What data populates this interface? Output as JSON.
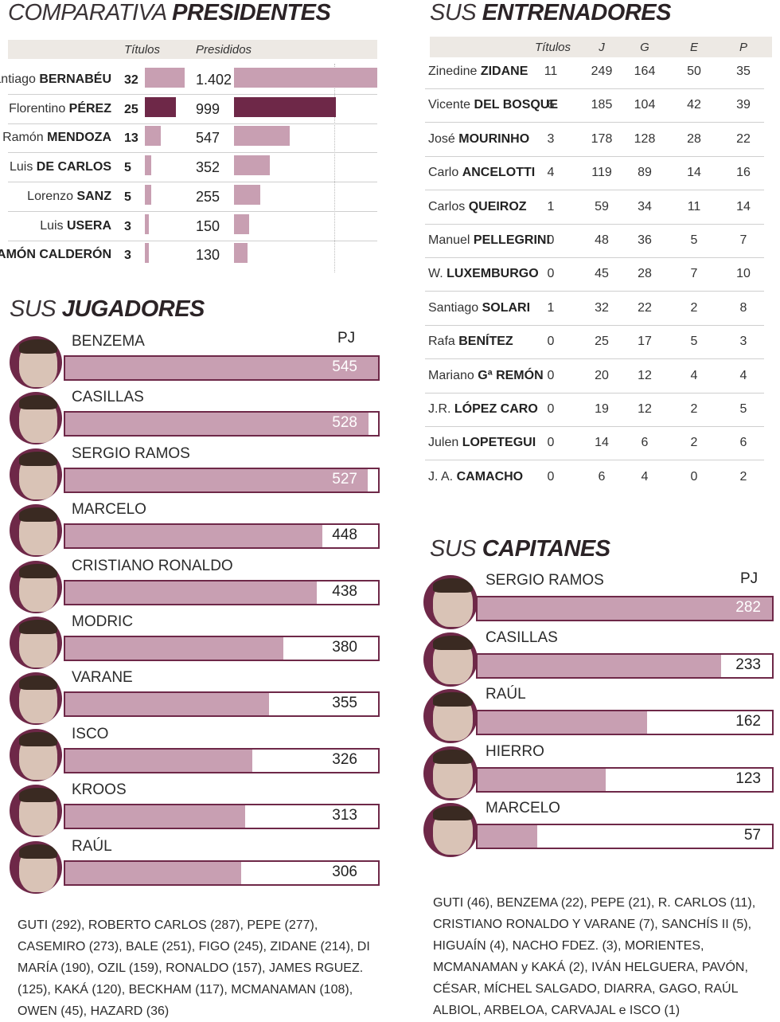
{
  "colors": {
    "accent": "#6e2848",
    "light": "#c89fb2",
    "header_bg": "#ede9e4"
  },
  "presidents": {
    "title_light": "COMPARATIVA ",
    "title_bold": "PRESIDENTES",
    "col_titulos": "Títulos",
    "col_presididos": "Presididos",
    "max_presididos": 1402,
    "rows": [
      {
        "first": "Santiago ",
        "last": "BERNABÉU",
        "titulos": 32,
        "presididos": 1402,
        "presididos_label": "1.402",
        "highlight": false
      },
      {
        "first": "Florentino ",
        "last": "PÉREZ",
        "titulos": 25,
        "presididos": 999,
        "presididos_label": "999",
        "highlight": true
      },
      {
        "first": "Ramón ",
        "last": "MENDOZA",
        "titulos": 13,
        "presididos": 547,
        "presididos_label": "547",
        "highlight": false
      },
      {
        "first": "Luis ",
        "last": "DE CARLOS",
        "titulos": 5,
        "presididos": 352,
        "presididos_label": "352",
        "highlight": false
      },
      {
        "first": "Lorenzo ",
        "last": "SANZ",
        "titulos": 5,
        "presididos": 255,
        "presididos_label": "255",
        "highlight": false
      },
      {
        "first": "Luis ",
        "last": "USERA",
        "titulos": 3,
        "presididos": 150,
        "presididos_label": "150",
        "highlight": false
      },
      {
        "first": "",
        "last": "RAMÓN CALDERÓN",
        "titulos": 3,
        "presididos": 130,
        "presididos_label": "130",
        "highlight": false
      }
    ]
  },
  "jugadores": {
    "title_light": "SUS ",
    "title_bold": "JUGADORES",
    "col_label": "PJ",
    "max": 545,
    "rows": [
      {
        "name": "BENZEMA",
        "pj": 545
      },
      {
        "name": "CASILLAS",
        "pj": 528
      },
      {
        "name": "SERGIO RAMOS",
        "pj": 527
      },
      {
        "name": "MARCELO",
        "pj": 448
      },
      {
        "name": "CRISTIANO RONALDO",
        "pj": 438
      },
      {
        "name": "MODRIC",
        "pj": 380
      },
      {
        "name": "VARANE",
        "pj": 355
      },
      {
        "name": "ISCO",
        "pj": 326
      },
      {
        "name": "KROOS",
        "pj": 313
      },
      {
        "name": "RAÚL",
        "pj": 306
      }
    ],
    "footnote": "GUTI (292), ROBERTO CARLOS (287), PEPE (277), CASEMIRO (273), BALE (251), FIGO (245), ZIDANE (214), DI MARÍA (190), OZIL (159), RONALDO (157), JAMES RGUEZ. (125), KAKÁ (120), BECKHAM (117), MCMANAMAN (108), OWEN (45), HAZARD (36)"
  },
  "entrenadores": {
    "title_light": "SUS ",
    "title_bold": "ENTRENADORES",
    "columns": [
      "Títulos",
      "J",
      "G",
      "E",
      "P"
    ],
    "rows": [
      {
        "first": "Zinedine ",
        "last": "ZIDANE",
        "values": [
          11,
          249,
          164,
          50,
          35
        ]
      },
      {
        "first": "Vicente ",
        "last": "DEL BOSQUE",
        "values": [
          6,
          185,
          104,
          42,
          39
        ]
      },
      {
        "first": "José ",
        "last": "MOURINHO",
        "values": [
          3,
          178,
          128,
          28,
          22
        ]
      },
      {
        "first": "Carlo ",
        "last": "ANCELOTTI",
        "values": [
          4,
          119,
          89,
          14,
          16
        ]
      },
      {
        "first": "Carlos ",
        "last": "QUEIROZ",
        "values": [
          1,
          59,
          34,
          11,
          14
        ]
      },
      {
        "first": "Manuel ",
        "last": "PELLEGRINI",
        "values": [
          0,
          48,
          36,
          5,
          7
        ]
      },
      {
        "first": "W. ",
        "last": "LUXEMBURGO",
        "values": [
          0,
          45,
          28,
          7,
          10
        ]
      },
      {
        "first": "Santiago ",
        "last": "SOLARI",
        "values": [
          1,
          32,
          22,
          2,
          8
        ]
      },
      {
        "first": "Rafa ",
        "last": "BENÍTEZ",
        "values": [
          0,
          25,
          17,
          5,
          3
        ]
      },
      {
        "first": "Mariano ",
        "last": "Gª REMÓN",
        "values": [
          0,
          20,
          12,
          4,
          4
        ]
      },
      {
        "first": "J.R. ",
        "last": "LÓPEZ CARO",
        "values": [
          0,
          19,
          12,
          2,
          5
        ]
      },
      {
        "first": "Julen ",
        "last": "LOPETEGUI",
        "values": [
          0,
          14,
          6,
          2,
          6
        ]
      },
      {
        "first": "J. A. ",
        "last": "CAMACHO",
        "values": [
          0,
          6,
          4,
          0,
          2
        ]
      }
    ]
  },
  "capitanes": {
    "title_light": "SUS ",
    "title_bold": "CAPITANES",
    "col_label": "PJ",
    "max": 282,
    "rows": [
      {
        "name": "SERGIO RAMOS",
        "pj": 282
      },
      {
        "name": "CASILLAS",
        "pj": 233
      },
      {
        "name": "RAÚL",
        "pj": 162
      },
      {
        "name": "HIERRO",
        "pj": 123
      },
      {
        "name": "MARCELO",
        "pj": 57
      }
    ],
    "footnote": "GUTI (46), BENZEMA (22), PEPE (21), R. CARLOS (11), CRISTIANO RONALDO Y VARANE (7), SANCHÍS II (5), HIGUAÍN (4), NACHO FDEZ. (3), MORIENTES, MCMANAMAN y KAKÁ (2), IVÁN HELGUERA, PAVÓN, CÉSAR, MÍCHEL SALGADO, DIARRA, GAGO, RAÚL ALBIOL, ARBELOA, CARVAJAL e ISCO (1)"
  },
  "chart_data": [
    {
      "type": "bar",
      "title": "COMPARATIVA PRESIDENTES",
      "categories": [
        "Santiago BERNABÉU",
        "Florentino PÉREZ",
        "Ramón MENDOZA",
        "Luis DE CARLOS",
        "Lorenzo SANZ",
        "Luis USERA",
        "RAMÓN CALDERÓN"
      ],
      "series": [
        {
          "name": "Títulos",
          "values": [
            32,
            25,
            13,
            5,
            5,
            3,
            3
          ]
        },
        {
          "name": "Presididos",
          "values": [
            1402,
            999,
            547,
            352,
            255,
            150,
            130
          ]
        }
      ]
    },
    {
      "type": "bar",
      "title": "SUS JUGADORES",
      "categories": [
        "BENZEMA",
        "CASILLAS",
        "SERGIO RAMOS",
        "MARCELO",
        "CRISTIANO RONALDO",
        "MODRIC",
        "VARANE",
        "ISCO",
        "KROOS",
        "RAÚL"
      ],
      "series": [
        {
          "name": "PJ",
          "values": [
            545,
            528,
            527,
            448,
            438,
            380,
            355,
            326,
            313,
            306
          ]
        }
      ]
    },
    {
      "type": "table",
      "title": "SUS ENTRENADORES",
      "columns": [
        "Títulos",
        "J",
        "G",
        "E",
        "P"
      ]
    },
    {
      "type": "bar",
      "title": "SUS CAPITANES",
      "categories": [
        "SERGIO RAMOS",
        "CASILLAS",
        "RAÚL",
        "HIERRO",
        "MARCELO"
      ],
      "series": [
        {
          "name": "PJ",
          "values": [
            282,
            233,
            162,
            123,
            57
          ]
        }
      ]
    }
  ]
}
